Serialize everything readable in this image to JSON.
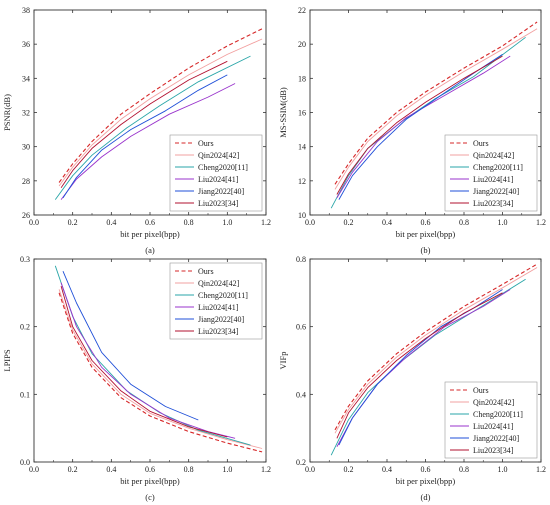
{
  "figure": {
    "colors": {
      "Ours": "#d62728",
      "Qin2024[42]": "#f2a0a0",
      "Cheng2020[11]": "#2aa6a8",
      "Liu2024[41]": "#9933cc",
      "Jiang2022[40]": "#1f4fd8",
      "Liu2023[34]": "#b2102f"
    }
  },
  "chart_data": [
    {
      "type": "line",
      "panel_label": "(a)",
      "xlabel": "bit per pixel(bpp)",
      "ylabel": "PSNR(dB)",
      "xlim": [
        0.0,
        1.2
      ],
      "ylim": [
        26,
        38
      ],
      "xticks": [
        "0.0",
        "0.2",
        "0.4",
        "0.6",
        "0.8",
        "1.0",
        "1.2"
      ],
      "yticks": [
        "26",
        "28",
        "30",
        "32",
        "34",
        "36",
        "38"
      ],
      "legend": "bottom-right",
      "series": [
        {
          "name": "Ours",
          "dashed": true,
          "points": [
            [
              0.13,
              27.9
            ],
            [
              0.2,
              29.0
            ],
            [
              0.3,
              30.3
            ],
            [
              0.45,
              31.9
            ],
            [
              0.6,
              33.1
            ],
            [
              0.8,
              34.6
            ],
            [
              1.0,
              35.9
            ],
            [
              1.18,
              36.9
            ]
          ]
        },
        {
          "name": "Qin2024[42]",
          "points": [
            [
              0.13,
              27.7
            ],
            [
              0.2,
              28.8
            ],
            [
              0.3,
              30.1
            ],
            [
              0.45,
              31.6
            ],
            [
              0.6,
              32.8
            ],
            [
              0.8,
              34.2
            ],
            [
              1.0,
              35.4
            ],
            [
              1.18,
              36.3
            ]
          ]
        },
        {
          "name": "Cheng2020[11]",
          "points": [
            [
              0.11,
              26.9
            ],
            [
              0.2,
              28.3
            ],
            [
              0.3,
              29.5
            ],
            [
              0.48,
              31.1
            ],
            [
              0.65,
              32.4
            ],
            [
              0.85,
              33.8
            ],
            [
              1.12,
              35.3
            ]
          ]
        },
        {
          "name": "Liu2024[41]",
          "points": [
            [
              0.14,
              26.9
            ],
            [
              0.22,
              28.1
            ],
            [
              0.35,
              29.4
            ],
            [
              0.5,
              30.6
            ],
            [
              0.7,
              31.9
            ],
            [
              0.9,
              32.9
            ],
            [
              1.04,
              33.7
            ]
          ]
        },
        {
          "name": "Jiang2022[40]",
          "points": [
            [
              0.15,
              27.0
            ],
            [
              0.22,
              28.2
            ],
            [
              0.35,
              29.8
            ],
            [
              0.5,
              31.0
            ],
            [
              0.68,
              32.1
            ],
            [
              0.85,
              33.3
            ],
            [
              1.0,
              34.2
            ]
          ]
        },
        {
          "name": "Liu2023[34]",
          "points": [
            [
              0.14,
              27.6
            ],
            [
              0.2,
              28.6
            ],
            [
              0.3,
              29.9
            ],
            [
              0.45,
              31.3
            ],
            [
              0.6,
              32.5
            ],
            [
              0.8,
              33.9
            ],
            [
              1.0,
              35.0
            ]
          ]
        }
      ]
    },
    {
      "type": "line",
      "panel_label": "(b)",
      "xlabel": "bit per pixel(bpp)",
      "ylabel": "MS-SSIM(dB)",
      "xlim": [
        0.0,
        1.2
      ],
      "ylim": [
        10,
        22
      ],
      "xticks": [
        "0.0",
        "0.2",
        "0.4",
        "0.6",
        "0.8",
        "1.0",
        "1.2"
      ],
      "yticks": [
        "10",
        "12",
        "14",
        "16",
        "18",
        "20",
        "22"
      ],
      "legend": "bottom-right",
      "series": [
        {
          "name": "Ours",
          "dashed": true,
          "points": [
            [
              0.13,
              11.8
            ],
            [
              0.2,
              13.0
            ],
            [
              0.3,
              14.5
            ],
            [
              0.45,
              16.0
            ],
            [
              0.6,
              17.2
            ],
            [
              0.8,
              18.6
            ],
            [
              1.0,
              19.9
            ],
            [
              1.18,
              21.3
            ]
          ]
        },
        {
          "name": "Qin2024[42]",
          "points": [
            [
              0.13,
              11.5
            ],
            [
              0.2,
              12.8
            ],
            [
              0.3,
              14.3
            ],
            [
              0.45,
              15.8
            ],
            [
              0.6,
              17.0
            ],
            [
              0.8,
              18.4
            ],
            [
              1.0,
              19.7
            ],
            [
              1.18,
              20.9
            ]
          ]
        },
        {
          "name": "Cheng2020[11]",
          "points": [
            [
              0.11,
              10.4
            ],
            [
              0.2,
              12.3
            ],
            [
              0.3,
              13.9
            ],
            [
              0.48,
              15.5
            ],
            [
              0.65,
              16.8
            ],
            [
              0.85,
              18.1
            ],
            [
              1.12,
              20.4
            ]
          ]
        },
        {
          "name": "Liu2024[41]",
          "points": [
            [
              0.14,
              11.0
            ],
            [
              0.22,
              12.5
            ],
            [
              0.35,
              14.3
            ],
            [
              0.5,
              15.7
            ],
            [
              0.7,
              17.0
            ],
            [
              0.9,
              18.3
            ],
            [
              1.04,
              19.3
            ]
          ]
        },
        {
          "name": "Jiang2022[40]",
          "points": [
            [
              0.15,
              10.9
            ],
            [
              0.22,
              12.3
            ],
            [
              0.35,
              14.0
            ],
            [
              0.5,
              15.6
            ],
            [
              0.68,
              17.0
            ],
            [
              0.85,
              18.3
            ],
            [
              1.0,
              19.4
            ]
          ]
        },
        {
          "name": "Liu2023[34]",
          "points": [
            [
              0.14,
              11.2
            ],
            [
              0.2,
              12.4
            ],
            [
              0.3,
              13.9
            ],
            [
              0.45,
              15.4
            ],
            [
              0.6,
              16.6
            ],
            [
              0.8,
              18.0
            ],
            [
              1.0,
              19.3
            ]
          ]
        }
      ]
    },
    {
      "type": "line",
      "panel_label": "(c)",
      "xlabel": "bit per pixel(bpp)",
      "ylabel": "LPIPS",
      "xlim": [
        0.0,
        1.2
      ],
      "ylim": [
        0.0,
        0.3
      ],
      "xticks": [
        "0.0",
        "0.2",
        "0.4",
        "0.6",
        "0.8",
        "1.0",
        "1.2"
      ],
      "yticks": [
        "0.0",
        "0.1",
        "0.2",
        "0.3"
      ],
      "legend": "top-right",
      "series": [
        {
          "name": "Ours",
          "dashed": true,
          "points": [
            [
              0.13,
              0.25
            ],
            [
              0.2,
              0.19
            ],
            [
              0.3,
              0.14
            ],
            [
              0.45,
              0.095
            ],
            [
              0.6,
              0.068
            ],
            [
              0.8,
              0.045
            ],
            [
              1.0,
              0.028
            ],
            [
              1.18,
              0.015
            ]
          ]
        },
        {
          "name": "Qin2024[42]",
          "points": [
            [
              0.13,
              0.255
            ],
            [
              0.2,
              0.195
            ],
            [
              0.3,
              0.145
            ],
            [
              0.45,
              0.1
            ],
            [
              0.6,
              0.072
            ],
            [
              0.8,
              0.05
            ],
            [
              1.0,
              0.033
            ],
            [
              1.18,
              0.02
            ]
          ]
        },
        {
          "name": "Cheng2020[11]",
          "points": [
            [
              0.11,
              0.29
            ],
            [
              0.2,
              0.215
            ],
            [
              0.3,
              0.16
            ],
            [
              0.48,
              0.105
            ],
            [
              0.65,
              0.073
            ],
            [
              0.85,
              0.047
            ],
            [
              1.12,
              0.025
            ]
          ]
        },
        {
          "name": "Liu2024[41]",
          "points": [
            [
              0.14,
              0.265
            ],
            [
              0.22,
              0.2
            ],
            [
              0.35,
              0.14
            ],
            [
              0.5,
              0.1
            ],
            [
              0.7,
              0.065
            ],
            [
              0.9,
              0.045
            ],
            [
              1.04,
              0.035
            ]
          ]
        },
        {
          "name": "Jiang2022[40]",
          "points": [
            [
              0.15,
              0.282
            ],
            [
              0.22,
              0.235
            ],
            [
              0.35,
              0.162
            ],
            [
              0.5,
              0.115
            ],
            [
              0.68,
              0.082
            ],
            [
              0.85,
              0.062
            ]
          ]
        },
        {
          "name": "Liu2023[34]",
          "points": [
            [
              0.14,
              0.26
            ],
            [
              0.2,
              0.2
            ],
            [
              0.3,
              0.15
            ],
            [
              0.45,
              0.105
            ],
            [
              0.6,
              0.075
            ],
            [
              0.8,
              0.052
            ],
            [
              1.0,
              0.037
            ]
          ]
        }
      ]
    },
    {
      "type": "line",
      "panel_label": "(d)",
      "xlabel": "bit per pixel(bpp)",
      "ylabel": "VIFp",
      "xlim": [
        0.0,
        1.2
      ],
      "ylim": [
        0.2,
        0.8
      ],
      "xticks": [
        "0.0",
        "0.2",
        "0.4",
        "0.6",
        "0.8",
        "1.0",
        "1.2"
      ],
      "yticks": [
        "0.2",
        "0.4",
        "0.6",
        "0.8"
      ],
      "legend": "bottom-right",
      "series": [
        {
          "name": "Ours",
          "dashed": true,
          "points": [
            [
              0.13,
              0.295
            ],
            [
              0.2,
              0.365
            ],
            [
              0.3,
              0.44
            ],
            [
              0.45,
              0.52
            ],
            [
              0.6,
              0.585
            ],
            [
              0.8,
              0.66
            ],
            [
              1.0,
              0.725
            ],
            [
              1.18,
              0.785
            ]
          ]
        },
        {
          "name": "Qin2024[42]",
          "points": [
            [
              0.13,
              0.285
            ],
            [
              0.2,
              0.355
            ],
            [
              0.3,
              0.43
            ],
            [
              0.45,
              0.51
            ],
            [
              0.6,
              0.575
            ],
            [
              0.8,
              0.65
            ],
            [
              1.0,
              0.715
            ],
            [
              1.18,
              0.775
            ]
          ]
        },
        {
          "name": "Cheng2020[11]",
          "points": [
            [
              0.11,
              0.22
            ],
            [
              0.2,
              0.325
            ],
            [
              0.3,
              0.405
            ],
            [
              0.48,
              0.5
            ],
            [
              0.65,
              0.575
            ],
            [
              0.85,
              0.645
            ],
            [
              1.12,
              0.74
            ]
          ]
        },
        {
          "name": "Liu2024[41]",
          "points": [
            [
              0.14,
              0.245
            ],
            [
              0.22,
              0.33
            ],
            [
              0.35,
              0.43
            ],
            [
              0.5,
              0.51
            ],
            [
              0.7,
              0.6
            ],
            [
              0.9,
              0.66
            ],
            [
              1.04,
              0.71
            ]
          ]
        },
        {
          "name": "Jiang2022[40]",
          "points": [
            [
              0.15,
              0.25
            ],
            [
              0.22,
              0.33
            ],
            [
              0.35,
              0.43
            ],
            [
              0.5,
              0.515
            ],
            [
              0.68,
              0.6
            ],
            [
              0.85,
              0.655
            ],
            [
              1.0,
              0.71
            ]
          ]
        },
        {
          "name": "Liu2023[34]",
          "points": [
            [
              0.14,
              0.27
            ],
            [
              0.2,
              0.345
            ],
            [
              0.3,
              0.42
            ],
            [
              0.45,
              0.5
            ],
            [
              0.6,
              0.565
            ],
            [
              0.8,
              0.64
            ],
            [
              1.0,
              0.7
            ]
          ]
        }
      ]
    }
  ]
}
